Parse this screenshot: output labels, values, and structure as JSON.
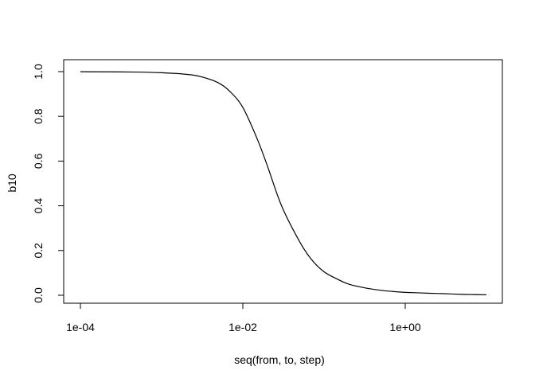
{
  "chart_data": {
    "type": "line",
    "title": "",
    "xlabel": "seq(from, to, step)",
    "ylabel": "b10",
    "x_scale": "log",
    "xlim": [
      0.0001,
      10
    ],
    "ylim": [
      0,
      1
    ],
    "grid": false,
    "x_ticks": [
      0.0001,
      0.01,
      1
    ],
    "x_tick_labels": [
      "1e-04",
      "1e-02",
      "1e+00"
    ],
    "y_ticks": [
      0,
      0.2,
      0.4,
      0.6,
      0.8,
      1
    ],
    "y_tick_labels": [
      "0.0",
      "0.2",
      "0.4",
      "0.6",
      "0.8",
      "1.0"
    ],
    "series": [
      {
        "x": [
          0.0001,
          0.0002,
          0.0005,
          0.001,
          0.002,
          0.003,
          0.005,
          0.007,
          0.01,
          0.015,
          0.02,
          0.03,
          0.05,
          0.07,
          0.1,
          0.15,
          0.2,
          0.3,
          0.5,
          0.7,
          1,
          2,
          3,
          5,
          7,
          10
        ],
        "y": [
          0.9995,
          0.999,
          0.998,
          0.995,
          0.988,
          0.978,
          0.95,
          0.91,
          0.84,
          0.7,
          0.58,
          0.4,
          0.24,
          0.16,
          0.105,
          0.07,
          0.05,
          0.035,
          0.022,
          0.017,
          0.013,
          0.009,
          0.007,
          0.004,
          0.003,
          0.002
        ]
      }
    ]
  }
}
